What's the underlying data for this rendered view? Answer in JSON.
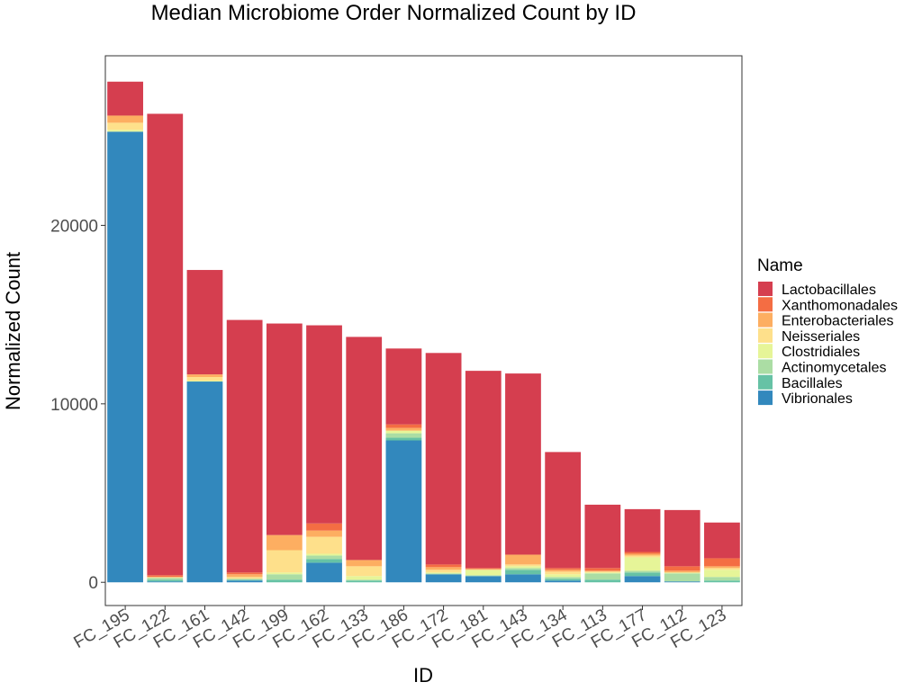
{
  "chart_data": {
    "type": "bar",
    "stacked": true,
    "title": "Median Microbiome Order Normalized Count by ID",
    "xlabel": "ID",
    "ylabel": "Normalized Count",
    "ylim": [
      -1300,
      29500
    ],
    "yticks": [
      0,
      10000,
      20000
    ],
    "grid": false,
    "legend_position": "right",
    "legend_title": "Name",
    "categories": [
      "FC_195",
      "FC_122",
      "FC_161",
      "FC_142",
      "FC_199",
      "FC_162",
      "FC_133",
      "FC_186",
      "FC_172",
      "FC_181",
      "FC_143",
      "FC_134",
      "FC_113",
      "FC_177",
      "FC_112",
      "FC_123"
    ],
    "series": [
      {
        "name": "Vibrionales",
        "color": "#3288bd",
        "values": [
          25250,
          50,
          11250,
          100,
          0,
          1100,
          0,
          7950,
          450,
          350,
          450,
          100,
          0,
          350,
          50,
          0
        ]
      },
      {
        "name": "Bacillales",
        "color": "#66c2a5",
        "values": [
          0,
          100,
          0,
          50,
          150,
          200,
          100,
          150,
          0,
          0,
          250,
          100,
          150,
          200,
          0,
          100
        ]
      },
      {
        "name": "Actinomycetales",
        "color": "#abdda4",
        "values": [
          0,
          100,
          0,
          50,
          300,
          200,
          50,
          250,
          50,
          50,
          100,
          100,
          350,
          100,
          450,
          200
        ]
      },
      {
        "name": "Clostridiales",
        "color": "#e6f598",
        "values": [
          100,
          0,
          50,
          0,
          100,
          100,
          200,
          150,
          50,
          300,
          100,
          150,
          50,
          750,
          50,
          400
        ]
      },
      {
        "name": "Neisseriales",
        "color": "#fee08b",
        "values": [
          400,
          50,
          200,
          100,
          1250,
          950,
          550,
          0,
          150,
          0,
          100,
          150,
          50,
          100,
          0,
          100
        ]
      },
      {
        "name": "Enterobacteriales",
        "color": "#fdae61",
        "values": [
          400,
          0,
          150,
          150,
          850,
          350,
          350,
          150,
          150,
          50,
          550,
          100,
          50,
          100,
          100,
          100
        ]
      },
      {
        "name": "Xanthomonadales",
        "color": "#f46d43",
        "values": [
          0,
          100,
          0,
          100,
          0,
          400,
          0,
          200,
          150,
          50,
          0,
          100,
          150,
          100,
          250,
          450
        ]
      },
      {
        "name": "Lactobacillales",
        "color": "#d53e4f",
        "values": [
          1900,
          25850,
          5850,
          14150,
          11850,
          11100,
          12500,
          4250,
          11850,
          11050,
          10150,
          6500,
          3550,
          2400,
          3150,
          2000
        ]
      }
    ]
  }
}
